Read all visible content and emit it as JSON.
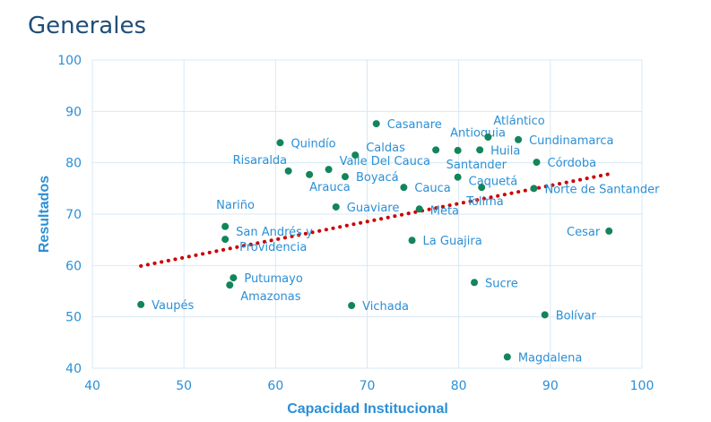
{
  "title": "Generales",
  "chart_data": {
    "type": "scatter",
    "title": "Generales",
    "xlabel": "Capacidad Institucional",
    "ylabel": "Resultados",
    "xlim": [
      40,
      100
    ],
    "ylim": [
      40,
      100
    ],
    "xticks": [
      40,
      50,
      60,
      70,
      80,
      90,
      100
    ],
    "yticks": [
      40,
      50,
      60,
      70,
      80,
      90,
      100
    ],
    "grid": true,
    "point_color": "#12855a",
    "trend_color": "#cc0000",
    "trendline": {
      "x": [
        45.3,
        96.4
      ],
      "y": [
        59.9,
        77.8
      ]
    },
    "points": [
      {
        "name": "Vaupés",
        "x": 45.3,
        "y": 52.4
      },
      {
        "name": "Amazonas",
        "x": 55.0,
        "y": 56.2
      },
      {
        "name": "Putumayo",
        "x": 55.4,
        "y": 57.6
      },
      {
        "name": "San Andrés y Providencia",
        "x": 54.5,
        "y": 65.1
      },
      {
        "name": "Nariño",
        "x": 54.5,
        "y": 67.6
      },
      {
        "name": "Risaralda",
        "x": 61.4,
        "y": 78.4
      },
      {
        "name": "Quindío",
        "x": 60.5,
        "y": 83.9
      },
      {
        "name": "Arauca",
        "x": 63.7,
        "y": 77.7
      },
      {
        "name": "Valle Del Cauca",
        "x": 65.8,
        "y": 78.7
      },
      {
        "name": "Boyacá",
        "x": 67.6,
        "y": 77.3
      },
      {
        "name": "Caldas",
        "x": 68.7,
        "y": 81.5
      },
      {
        "name": "Guaviare",
        "x": 66.6,
        "y": 71.4
      },
      {
        "name": "Vichada",
        "x": 68.3,
        "y": 52.2
      },
      {
        "name": "Casanare",
        "x": 71.0,
        "y": 87.6
      },
      {
        "name": "Cauca",
        "x": 74.0,
        "y": 75.2
      },
      {
        "name": "Meta",
        "x": 75.7,
        "y": 71.0
      },
      {
        "name": "La Guajira",
        "x": 74.9,
        "y": 64.9
      },
      {
        "name": "Antioquia",
        "x": 77.5,
        "y": 82.5
      },
      {
        "name": "Santander",
        "x": 79.9,
        "y": 82.4
      },
      {
        "name": "Caquetá",
        "x": 79.9,
        "y": 77.2
      },
      {
        "name": "Tolima",
        "x": 82.5,
        "y": 75.2
      },
      {
        "name": "Atlántico",
        "x": 83.2,
        "y": 85.0
      },
      {
        "name": "Huila",
        "x": 82.3,
        "y": 82.5
      },
      {
        "name": "Cundinamarca",
        "x": 86.5,
        "y": 84.5
      },
      {
        "name": "Córdoba",
        "x": 88.5,
        "y": 80.1
      },
      {
        "name": "Norte de Santander",
        "x": 88.2,
        "y": 75.0
      },
      {
        "name": "Sucre",
        "x": 81.7,
        "y": 56.7
      },
      {
        "name": "Bolívar",
        "x": 89.4,
        "y": 50.4
      },
      {
        "name": "Magdalena",
        "x": 85.3,
        "y": 42.2
      },
      {
        "name": "Cesar",
        "x": 96.4,
        "y": 66.7
      }
    ]
  }
}
